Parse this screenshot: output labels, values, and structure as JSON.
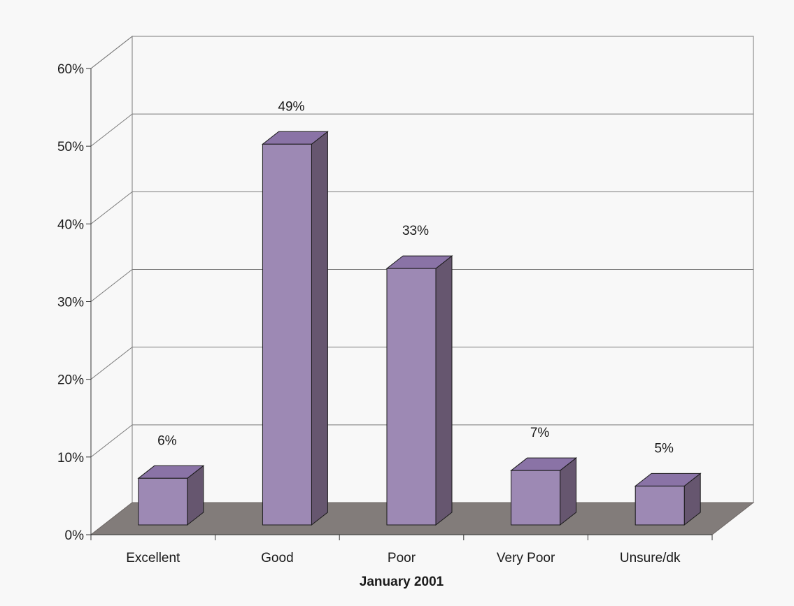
{
  "chart_data": {
    "type": "bar",
    "categories": [
      "Excellent",
      "Good",
      "Poor",
      "Very Poor",
      "Unsure/dk"
    ],
    "values": [
      6,
      49,
      33,
      7,
      5
    ],
    "data_labels": [
      "6%",
      "49%",
      "33%",
      "7%",
      "5%"
    ],
    "y_tick_labels": [
      "0%",
      "10%",
      "20%",
      "30%",
      "40%",
      "50%",
      "60%"
    ],
    "xlabel": "January 2001",
    "ylabel": "",
    "ylim": [
      0,
      60
    ],
    "grid": true,
    "style": "3d-column",
    "colors": {
      "bar_front": "#9d89b4",
      "bar_top": "#8a73a6",
      "bar_side": "#66566f",
      "floor": "#827c7a",
      "grid": "#7a7a7a",
      "background": "#f8f8f8"
    }
  }
}
